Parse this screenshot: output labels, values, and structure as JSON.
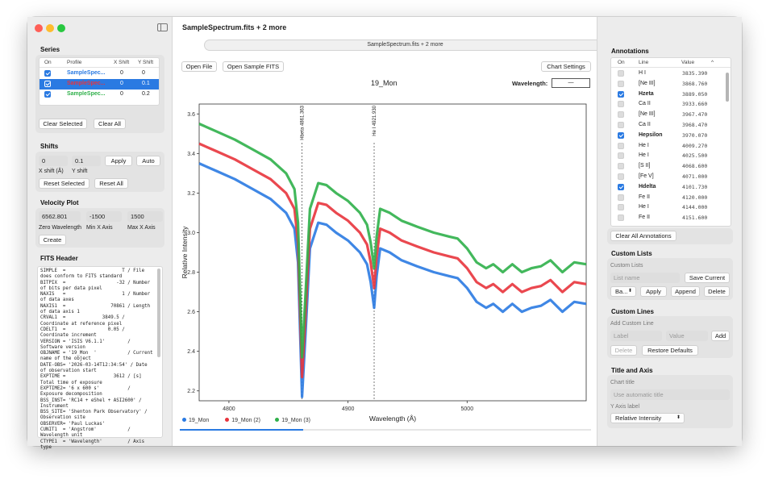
{
  "window": {
    "title": "SampleSpectrum.fits + 2 more",
    "tab_label": "SampleSpectrum.fits + 2 more",
    "add_tab": "+"
  },
  "series": {
    "title": "Series",
    "headers": [
      "On",
      "Profile",
      "X Shift",
      "Y Shift"
    ],
    "rows": [
      {
        "on": true,
        "profile": "SampleSpec...",
        "x_shift": "0",
        "y_shift": "0",
        "color": "#2a7ae2",
        "selected": false
      },
      {
        "on": true,
        "profile": "SampleSpec...",
        "x_shift": "0",
        "y_shift": "0.1",
        "color": "#e8343c",
        "selected": true
      },
      {
        "on": true,
        "profile": "SampleSpec...",
        "x_shift": "0",
        "y_shift": "0.2",
        "color": "#2fb04a",
        "selected": false
      }
    ],
    "clear_selected": "Clear Selected",
    "clear_all": "Clear All"
  },
  "shifts": {
    "title": "Shifts",
    "x_value": "0",
    "y_value": "0.1",
    "x_label": "X shift (Å)",
    "y_label": "Y shift",
    "apply": "Apply",
    "auto": "Auto",
    "reset_selected": "Reset Selected",
    "reset_all": "Reset All"
  },
  "velocity": {
    "title": "Velocity Plot",
    "zero_value": "6562.801",
    "min_value": "-1500",
    "max_value": "1500",
    "zero_label": "Zero Wavelength",
    "min_label": "Min X Axis",
    "max_label": "Max X Axis",
    "create": "Create"
  },
  "fits": {
    "title": "FITS Header",
    "text": "SIMPLE  =                    T / File does conform to FITS standard\nBITPIX  =                  -32 / Number of bits per data pixel\nNAXIS   =                    1 / Number of data axes\nNAXIS1  =                70861 / Length of data axis 1\nCRVAL1  =             3849.5 / Coordinate at reference pixel\nCDELT1  =               0.05 / Coordinate increment\nVERSION = 'ISIS V6.1.1'        / Software version\nOBJNAME = '19_Mon  '           / Current name of the object\nDATE-OBS= '2026-03-14T12:34:54' / Date of observation start\nEXPTIME =                 3612 / [s] Total time of exposure\nEXPTIME2= '6 x 600 s'          / Exposure decomposition\nBSS_INST= 'RC14 + eShel + ASI2600' / Instrument\nBSS_SITE= 'Shenton Park Observatory' / Observation site\nOBSERVER= 'Paul Luckas'\nCUNIT1  = 'Angstrom'           / Wavelength unit\nCTYPE1  = 'Wavelength'         / Axis type"
  },
  "toolbar": {
    "open_file": "Open File",
    "open_sample": "Open Sample FITS",
    "chart_settings": "Chart Settings"
  },
  "chart_data": {
    "type": "line",
    "title": "19_Mon",
    "xlabel": "Wavelength (Å)",
    "ylabel": "Relative Intensity",
    "xlim": [
      4775,
      5100
    ],
    "ylim": [
      2.15,
      3.65
    ],
    "xticks": [
      "4800",
      "4900",
      "5000"
    ],
    "yticks": [
      "2.2",
      "2.4",
      "2.6",
      "2.8",
      "3.0",
      "3.2",
      "3.4",
      "3.6"
    ],
    "grid": false,
    "legend_position": "bottom-left",
    "annotations": [
      {
        "label": "Hbeta 4861.363",
        "x": 4861.363
      },
      {
        "label": "He I 4921.930",
        "x": 4921.93
      }
    ],
    "series": [
      {
        "name": "19_Mon",
        "color": "#2a7ae2",
        "x": [
          4775,
          4790,
          4805,
          4820,
          4835,
          4848,
          4855,
          4858,
          4861.4,
          4864,
          4868,
          4875,
          4882,
          4890,
          4900,
          4910,
          4916,
          4919,
          4921.9,
          4924,
          4927,
          4935,
          4945,
          4958,
          4972,
          4985,
          4992,
          5000,
          5008,
          5016,
          5022,
          5030,
          5038,
          5046,
          5054,
          5062,
          5070,
          5080,
          5090,
          5100
        ],
        "y": [
          3.35,
          3.31,
          3.27,
          3.22,
          3.17,
          3.1,
          3.02,
          2.85,
          2.17,
          2.45,
          2.92,
          3.05,
          3.04,
          3.0,
          2.96,
          2.9,
          2.84,
          2.75,
          2.62,
          2.78,
          2.92,
          2.9,
          2.86,
          2.83,
          2.8,
          2.78,
          2.77,
          2.72,
          2.65,
          2.62,
          2.64,
          2.6,
          2.64,
          2.6,
          2.62,
          2.63,
          2.66,
          2.6,
          2.65,
          2.64
        ]
      },
      {
        "name": "19_Mon (2)",
        "color": "#e8343c",
        "x": [
          4775,
          4790,
          4805,
          4820,
          4835,
          4848,
          4855,
          4858,
          4861.4,
          4864,
          4868,
          4875,
          4882,
          4890,
          4900,
          4910,
          4916,
          4919,
          4921.9,
          4924,
          4927,
          4935,
          4945,
          4958,
          4972,
          4985,
          4992,
          5000,
          5008,
          5016,
          5022,
          5030,
          5038,
          5046,
          5054,
          5062,
          5070,
          5080,
          5090,
          5100
        ],
        "y": [
          3.45,
          3.41,
          3.37,
          3.32,
          3.27,
          3.2,
          3.12,
          2.95,
          2.27,
          2.55,
          3.02,
          3.15,
          3.14,
          3.1,
          3.06,
          3.0,
          2.94,
          2.85,
          2.72,
          2.88,
          3.02,
          3.0,
          2.96,
          2.93,
          2.9,
          2.88,
          2.87,
          2.82,
          2.75,
          2.72,
          2.74,
          2.7,
          2.74,
          2.7,
          2.72,
          2.73,
          2.76,
          2.7,
          2.75,
          2.74
        ]
      },
      {
        "name": "19_Mon (3)",
        "color": "#2fb04a",
        "x": [
          4775,
          4790,
          4805,
          4820,
          4835,
          4848,
          4855,
          4858,
          4861.4,
          4864,
          4868,
          4875,
          4882,
          4890,
          4900,
          4910,
          4916,
          4919,
          4921.9,
          4924,
          4927,
          4935,
          4945,
          4958,
          4972,
          4985,
          4992,
          5000,
          5008,
          5016,
          5022,
          5030,
          5038,
          5046,
          5054,
          5062,
          5070,
          5080,
          5090,
          5100
        ],
        "y": [
          3.55,
          3.51,
          3.47,
          3.42,
          3.37,
          3.3,
          3.22,
          3.05,
          2.37,
          2.65,
          3.12,
          3.25,
          3.24,
          3.2,
          3.16,
          3.1,
          3.04,
          2.95,
          2.82,
          2.98,
          3.12,
          3.1,
          3.06,
          3.03,
          3.0,
          2.98,
          2.97,
          2.92,
          2.85,
          2.82,
          2.84,
          2.8,
          2.84,
          2.8,
          2.82,
          2.83,
          2.86,
          2.8,
          2.85,
          2.84
        ]
      }
    ]
  },
  "wavelength": {
    "label": "Wavelength:",
    "value": "—"
  },
  "progress": {
    "fraction": 0.3
  },
  "annotations_panel": {
    "title": "Annotations",
    "headers": [
      "On",
      "Line",
      "Value"
    ],
    "rows": [
      {
        "on": false,
        "line": "H I",
        "value": "3835.390"
      },
      {
        "on": false,
        "line": "[Ne III]",
        "value": "3868.760"
      },
      {
        "on": true,
        "line": "Hzeta",
        "value": "3889.050"
      },
      {
        "on": false,
        "line": "Ca II",
        "value": "3933.660"
      },
      {
        "on": false,
        "line": "[Ne III]",
        "value": "3967.470"
      },
      {
        "on": false,
        "line": "Ca II",
        "value": "3968.470"
      },
      {
        "on": true,
        "line": "Hepsilon",
        "value": "3970.070"
      },
      {
        "on": false,
        "line": "He I",
        "value": "4009.270"
      },
      {
        "on": false,
        "line": "He I",
        "value": "4025.500"
      },
      {
        "on": false,
        "line": "[S II]",
        "value": "4068.600"
      },
      {
        "on": false,
        "line": "[Fe V]",
        "value": "4071.000"
      },
      {
        "on": true,
        "line": "Hdelta",
        "value": "4101.730"
      },
      {
        "on": false,
        "line": "Fe II",
        "value": "4120.000"
      },
      {
        "on": false,
        "line": "He I",
        "value": "4144.000"
      },
      {
        "on": false,
        "line": "Fe II",
        "value": "4151.600"
      }
    ],
    "clear_all": "Clear All Annotations"
  },
  "custom_lists": {
    "title": "Custom Lists",
    "sub": "Custom Lists",
    "name_placeholder": "List name",
    "save_current": "Save Current",
    "select_value": "Ba...",
    "apply": "Apply",
    "append": "Append",
    "delete": "Delete"
  },
  "custom_lines": {
    "title": "Custom Lines",
    "sub": "Add Custom Line",
    "label_placeholder": "Label",
    "value_placeholder": "Value",
    "add": "Add",
    "delete": "Delete",
    "restore": "Restore Defaults"
  },
  "title_axis": {
    "title": "Title and Axis",
    "chart_title_label": "Chart title",
    "chart_title_placeholder": "Use automatic title",
    "y_axis_label": "Y Axis label",
    "y_axis_value": "Relative Intensity"
  },
  "colors": {
    "accent": "#2a7ae2",
    "close": "#ff5f57",
    "minimize": "#febc2e",
    "zoom": "#28c840"
  }
}
